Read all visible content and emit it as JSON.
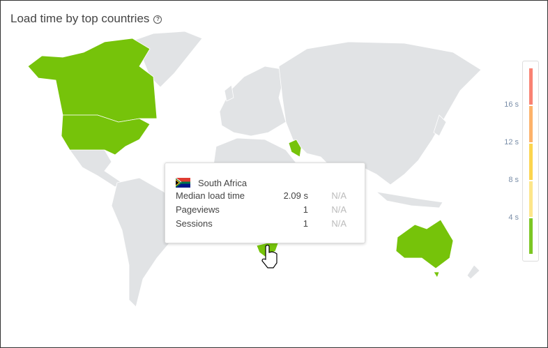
{
  "title": "Load time by top countries",
  "help_icon": "question-circle-icon",
  "colors": {
    "land": "#e1e3e5",
    "highlight": "#76c30a"
  },
  "highlighted_countries": [
    "United States",
    "Canada",
    "Iraq",
    "South Africa",
    "Australia"
  ],
  "legend": {
    "ticks": [
      "16 s",
      "12 s",
      "8 s",
      "4 s"
    ],
    "segments": [
      "#f98273",
      "#fdb26a",
      "#fcd54e",
      "#fde68a",
      "#7cc623"
    ]
  },
  "tooltip": {
    "country": "South Africa",
    "rows": [
      {
        "label": "Median load time",
        "value": "2.09 s",
        "compare": "N/A"
      },
      {
        "label": "Pageviews",
        "value": "1",
        "compare": "N/A"
      },
      {
        "label": "Sessions",
        "value": "1",
        "compare": "N/A"
      }
    ]
  }
}
